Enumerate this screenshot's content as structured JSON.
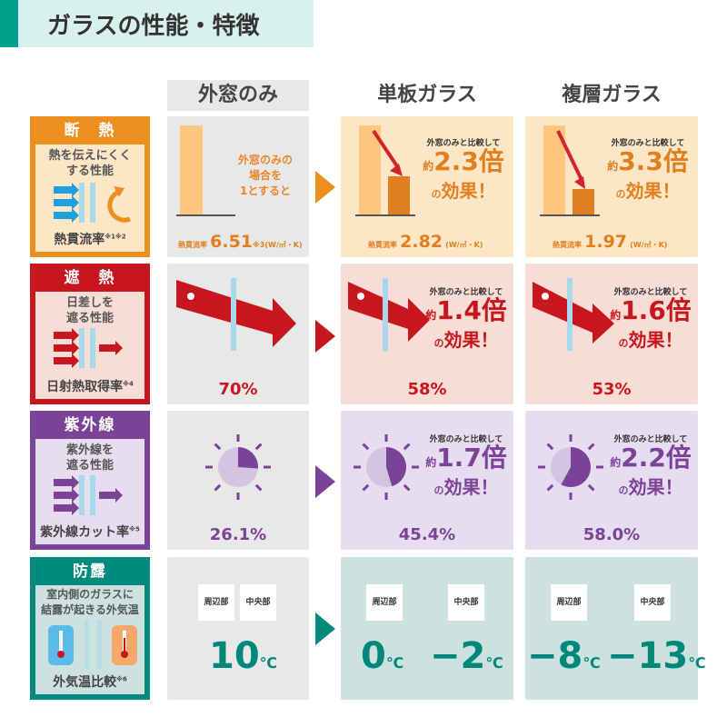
{
  "title": "ガラスの性能・特徴",
  "columns": [
    "外窓のみ",
    "単板ガラス",
    "複層ガラス"
  ],
  "colors": {
    "heat": "#ec8f1e",
    "solar": "#c8161e",
    "uv": "#7b4397",
    "dew": "#008a7e"
  },
  "rows": {
    "heat": {
      "label": "断　熱",
      "desc1": "熱を伝えにくく",
      "desc2": "する性能",
      "foot": "熱貫流率",
      "note": "※1※2",
      "base_note1": "外窓のみの",
      "base_note2": "場合を",
      "base_note3": "1とすると",
      "metric": "熱貫流率",
      "unit": "(W/㎡・K)",
      "base_value": "6.51",
      "base_mark": "※3",
      "cells": [
        {
          "compare": "外窓のみと比較して",
          "prefix": "約",
          "factor": "2.3倍",
          "effect": "効果！",
          "of": "の",
          "value": "2.82"
        },
        {
          "compare": "外窓のみと比較して",
          "prefix": "約",
          "factor": "3.3倍",
          "effect": "効果！",
          "of": "の",
          "value": "1.97"
        }
      ]
    },
    "solar": {
      "label": "遮　熱",
      "desc1": "日差しを",
      "desc2": "遮る性能",
      "foot": "日射熱取得率",
      "note": "※4",
      "base_value": "70%",
      "cells": [
        {
          "compare": "外窓のみと比較して",
          "prefix": "約",
          "factor": "1.4倍",
          "effect": "効果！",
          "of": "の",
          "value": "58%"
        },
        {
          "compare": "外窓のみと比較して",
          "prefix": "約",
          "factor": "1.6倍",
          "effect": "効果！",
          "of": "の",
          "value": "53%"
        }
      ]
    },
    "uv": {
      "label": "紫外線",
      "desc1": "紫外線を",
      "desc2": "遮る性能",
      "foot": "紫外線カット率",
      "note": "※5",
      "base_value": "26.1%",
      "cells": [
        {
          "compare": "外窓のみと比較して",
          "prefix": "約",
          "factor": "1.7倍",
          "effect": "効果！",
          "of": "の",
          "value": "45.4%"
        },
        {
          "compare": "外窓のみと比較して",
          "prefix": "約",
          "factor": "2.2倍",
          "effect": "効果！",
          "of": "の",
          "value": "58.0%"
        }
      ]
    },
    "dew": {
      "label": "防露",
      "desc1": "室内側のガラスに",
      "desc2": "結露が起きる外気温",
      "foot": "外気温比較",
      "note": "※6",
      "edge": "周辺部",
      "center": "中央部",
      "unit": "℃",
      "base": {
        "edge": "10",
        "center": ""
      },
      "cells": [
        {
          "edge": "0",
          "center": "−2"
        },
        {
          "edge": "−8",
          "center": "−13"
        }
      ]
    }
  }
}
